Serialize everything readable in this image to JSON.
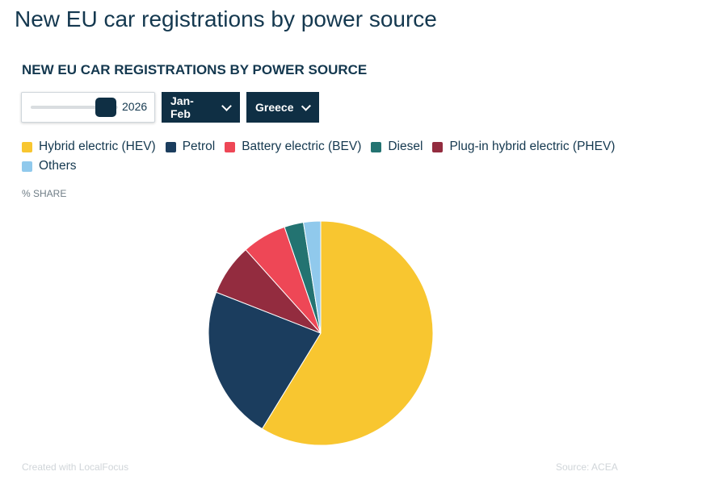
{
  "page_title": "New EU car registrations by power source",
  "chart": {
    "title": "NEW EU CAR REGISTRATIONS BY POWER SOURCE",
    "unit_label": "% SHARE"
  },
  "controls": {
    "year_value": "2026",
    "year_slider_position": 1.0,
    "period_label": "Jan-Feb",
    "country_label": "Greece"
  },
  "footer": {
    "credit": "Created with LocalFocus",
    "source": "Source:  ACEA"
  },
  "chart_data": {
    "type": "pie",
    "title": "NEW EU CAR REGISTRATIONS BY POWER SOURCE",
    "unit": "% SHARE",
    "legend_position": "top-left",
    "slices": [
      {
        "name": "Hybrid electric (HEV)",
        "value": 59.5,
        "color": "#f8c630"
      },
      {
        "name": "Petrol",
        "value": 22.5,
        "color": "#1b3d5e"
      },
      {
        "name": "Plug-in hybrid electric (PHEV)",
        "value": 7.5,
        "color": "#932c3f"
      },
      {
        "name": "Battery electric (BEV)",
        "value": 6.5,
        "color": "#ee4756"
      },
      {
        "name": "Diesel",
        "value": 2.8,
        "color": "#237371"
      },
      {
        "name": "Others",
        "value": 2.5,
        "color": "#90c9ec"
      }
    ],
    "legend": [
      {
        "name": "Hybrid electric (HEV)",
        "color": "#f8c630"
      },
      {
        "name": "Petrol",
        "color": "#1b3d5e"
      },
      {
        "name": "Battery electric (BEV)",
        "color": "#ee4756"
      },
      {
        "name": "Diesel",
        "color": "#237371"
      },
      {
        "name": "Plug-in hybrid electric (PHEV)",
        "color": "#932c3f"
      },
      {
        "name": "Others",
        "color": "#90c9ec"
      }
    ]
  }
}
